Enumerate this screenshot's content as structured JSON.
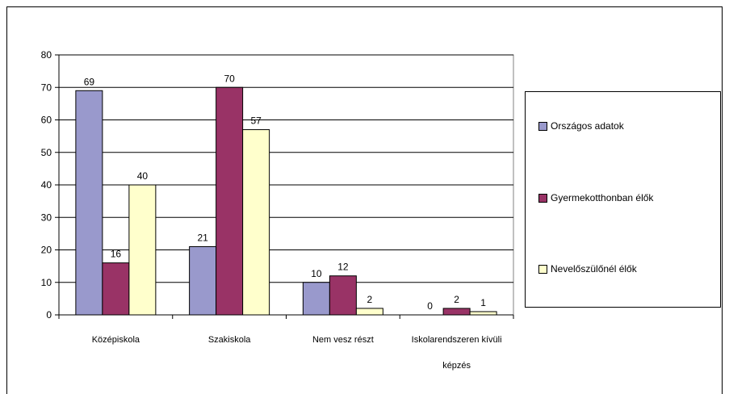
{
  "chart_data": {
    "type": "bar",
    "title": "",
    "xlabel": "",
    "ylabel": "",
    "ylim": [
      0,
      80
    ],
    "yticks": [
      0,
      10,
      20,
      30,
      40,
      50,
      60,
      70,
      80
    ],
    "grid": true,
    "legend_position": "right",
    "categories": [
      [
        "Középiskola"
      ],
      [
        "Szakiskola"
      ],
      [
        "Nem vesz részt"
      ],
      [
        "Iskolarendszeren kívüli",
        "képzés"
      ]
    ],
    "series": [
      {
        "name": "Országos adatok",
        "color": "#9999cc",
        "values": [
          69,
          21,
          10,
          0
        ]
      },
      {
        "name": "Gyermekotthonban élők",
        "color": "#993366",
        "values": [
          16,
          70,
          12,
          2
        ]
      },
      {
        "name": "Nevelőszülőnél élők",
        "color": "#ffffcc",
        "values": [
          40,
          57,
          2,
          1
        ]
      }
    ]
  }
}
